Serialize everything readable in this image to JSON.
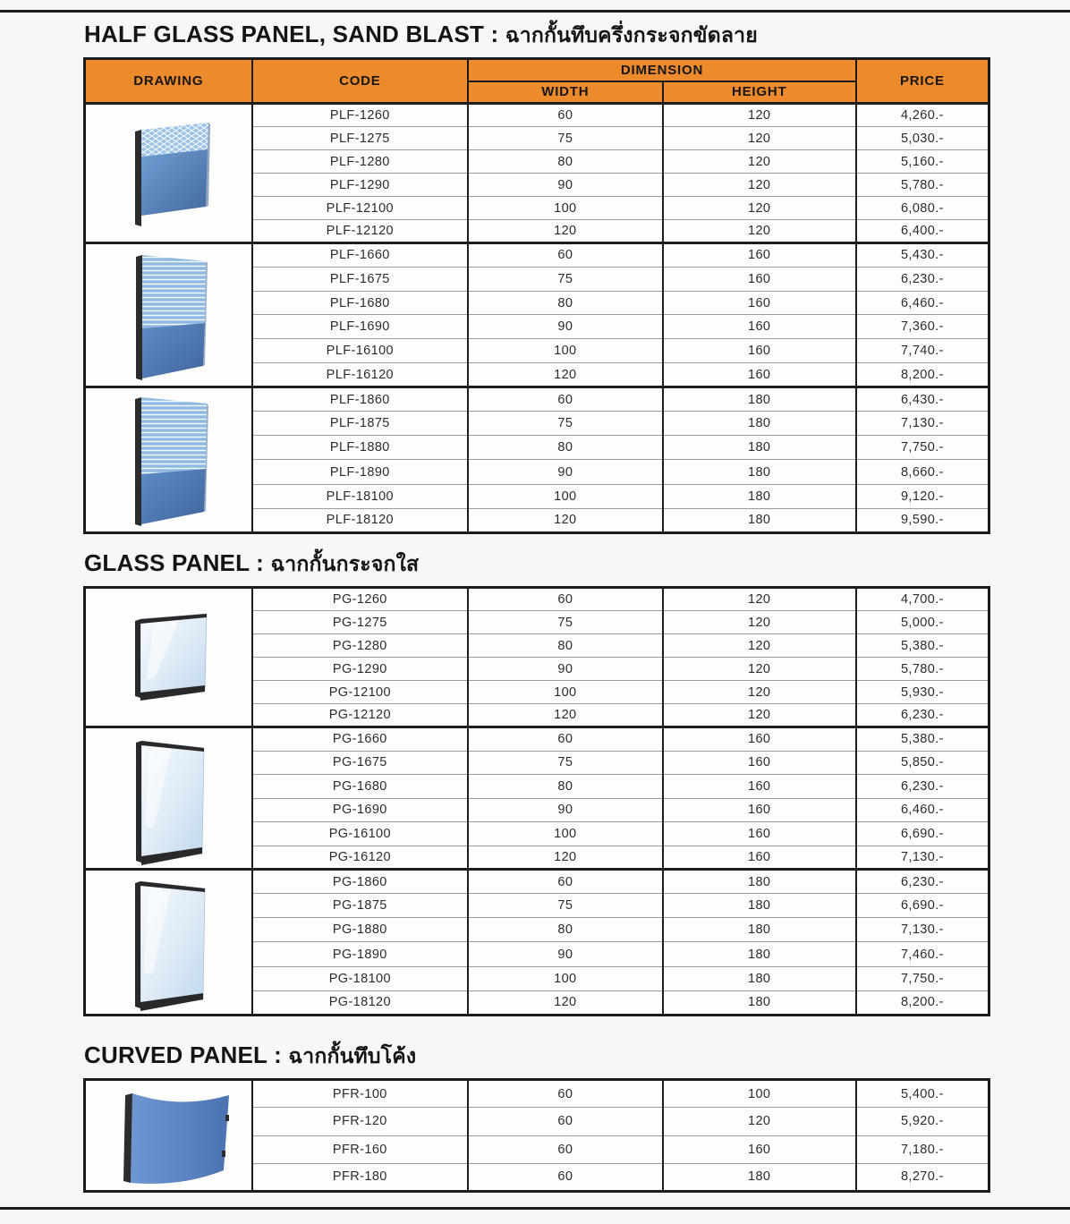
{
  "colors": {
    "header_orange": "#ed8a2b",
    "border_black": "#1c1c1c",
    "row_line": "#9b9b9b",
    "panel_blue": "#5586c4",
    "glass_tint": "#cfe2f3"
  },
  "table_header": {
    "drawing": "DRAWING",
    "code": "CODE",
    "dimension": "DIMENSION",
    "width": "WIDTH",
    "height": "HEIGHT",
    "price": "PRICE"
  },
  "sections": [
    {
      "title_en": "HALF GLASS PANEL, SAND BLAST",
      "title_sep": " : ",
      "title_th": "ฉากกั้นทึบครึ่งกระจกขัดลาย",
      "groups": [
        {
          "drawing": "sandblast-120",
          "rows": [
            {
              "code": "PLF-1260",
              "width": "60",
              "height": "120",
              "price": "4,260.-"
            },
            {
              "code": "PLF-1275",
              "width": "75",
              "height": "120",
              "price": "5,030.-"
            },
            {
              "code": "PLF-1280",
              "width": "80",
              "height": "120",
              "price": "5,160.-"
            },
            {
              "code": "PLF-1290",
              "width": "90",
              "height": "120",
              "price": "5,780.-"
            },
            {
              "code": "PLF-12100",
              "width": "100",
              "height": "120",
              "price": "6,080.-"
            },
            {
              "code": "PLF-12120",
              "width": "120",
              "height": "120",
              "price": "6,400.-"
            }
          ]
        },
        {
          "drawing": "sandblast-160",
          "rows": [
            {
              "code": "PLF-1660",
              "width": "60",
              "height": "160",
              "price": "5,430.-"
            },
            {
              "code": "PLF-1675",
              "width": "75",
              "height": "160",
              "price": "6,230.-"
            },
            {
              "code": "PLF-1680",
              "width": "80",
              "height": "160",
              "price": "6,460.-"
            },
            {
              "code": "PLF-1690",
              "width": "90",
              "height": "160",
              "price": "7,360.-"
            },
            {
              "code": "PLF-16100",
              "width": "100",
              "height": "160",
              "price": "7,740.-"
            },
            {
              "code": "PLF-16120",
              "width": "120",
              "height": "160",
              "price": "8,200.-"
            }
          ]
        },
        {
          "drawing": "sandblast-180",
          "rows": [
            {
              "code": "PLF-1860",
              "width": "60",
              "height": "180",
              "price": "6,430.-"
            },
            {
              "code": "PLF-1875",
              "width": "75",
              "height": "180",
              "price": "7,130.-"
            },
            {
              "code": "PLF-1880",
              "width": "80",
              "height": "180",
              "price": "7,750.-"
            },
            {
              "code": "PLF-1890",
              "width": "90",
              "height": "180",
              "price": "8,660.-"
            },
            {
              "code": "PLF-18100",
              "width": "100",
              "height": "180",
              "price": "9,120.-"
            },
            {
              "code": "PLF-18120",
              "width": "120",
              "height": "180",
              "price": "9,590.-"
            }
          ]
        }
      ]
    },
    {
      "title_en": "GLASS PANEL",
      "title_sep": " : ",
      "title_th": "ฉากกั้นกระจกใส",
      "groups": [
        {
          "drawing": "glass-120",
          "rows": [
            {
              "code": "PG-1260",
              "width": "60",
              "height": "120",
              "price": "4,700.-"
            },
            {
              "code": "PG-1275",
              "width": "75",
              "height": "120",
              "price": "5,000.-"
            },
            {
              "code": "PG-1280",
              "width": "80",
              "height": "120",
              "price": "5,380.-"
            },
            {
              "code": "PG-1290",
              "width": "90",
              "height": "120",
              "price": "5,780.-"
            },
            {
              "code": "PG-12100",
              "width": "100",
              "height": "120",
              "price": "5,930.-"
            },
            {
              "code": "PG-12120",
              "width": "120",
              "height": "120",
              "price": "6,230.-"
            }
          ]
        },
        {
          "drawing": "glass-160",
          "rows": [
            {
              "code": "PG-1660",
              "width": "60",
              "height": "160",
              "price": "5,380.-"
            },
            {
              "code": "PG-1675",
              "width": "75",
              "height": "160",
              "price": "5,850.-"
            },
            {
              "code": "PG-1680",
              "width": "80",
              "height": "160",
              "price": "6,230.-"
            },
            {
              "code": "PG-1690",
              "width": "90",
              "height": "160",
              "price": "6,460.-"
            },
            {
              "code": "PG-16100",
              "width": "100",
              "height": "160",
              "price": "6,690.-"
            },
            {
              "code": "PG-16120",
              "width": "120",
              "height": "160",
              "price": "7,130.-"
            }
          ]
        },
        {
          "drawing": "glass-180",
          "rows": [
            {
              "code": "PG-1860",
              "width": "60",
              "height": "180",
              "price": "6,230.-"
            },
            {
              "code": "PG-1875",
              "width": "75",
              "height": "180",
              "price": "6,690.-"
            },
            {
              "code": "PG-1880",
              "width": "80",
              "height": "180",
              "price": "7,130.-"
            },
            {
              "code": "PG-1890",
              "width": "90",
              "height": "180",
              "price": "7,460.-"
            },
            {
              "code": "PG-18100",
              "width": "100",
              "height": "180",
              "price": "7,750.-"
            },
            {
              "code": "PG-18120",
              "width": "120",
              "height": "180",
              "price": "8,200.-"
            }
          ]
        }
      ]
    },
    {
      "title_en": "CURVED PANEL",
      "title_sep": " : ",
      "title_th": "ฉากกั้นทึบโค้ง",
      "groups": [
        {
          "drawing": "curved-panel",
          "rows": [
            {
              "code": "PFR-100",
              "width": "60",
              "height": "100",
              "price": "5,400.-"
            },
            {
              "code": "PFR-120",
              "width": "60",
              "height": "120",
              "price": "5,920.-"
            },
            {
              "code": "PFR-160",
              "width": "60",
              "height": "160",
              "price": "7,180.-"
            },
            {
              "code": "PFR-180",
              "width": "60",
              "height": "180",
              "price": "8,270.-"
            }
          ]
        }
      ]
    }
  ]
}
